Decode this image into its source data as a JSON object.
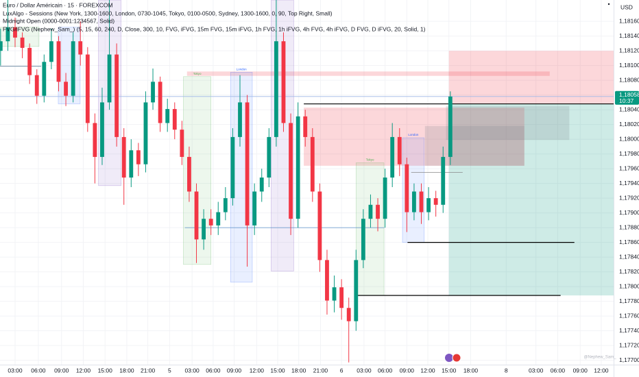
{
  "chart_data": {
    "type": "candlestick",
    "title": "Euro / Dollar Américain · 15 · FOREXCOM",
    "indicators": [
      "LuxAlgo - Sessions (New York, 1300-1600, London, 0730-1045, Tokyo, 0100-0500, Sydney, 1300-1600, 0, 90, Top Right, Small)",
      "Midnight Open (0000-0001:1234567, Solid)",
      "FVG/iFVG (Nephew_Sam_) (5, 15, 60, 240, D, Close, 300, 10, FVG, iFVG, 15m FVG, 15m iFVG, 1h FVG, 1h iFVG, 4h FVG, 4h iFVG, D FVG, D iFVG, 20, Solid, 1)"
    ],
    "currency": "USD",
    "watermark": "@Nephew_Sam_",
    "last_price": {
      "value": 1.18058,
      "label": "1,18058"
    },
    "countdown": "10:37",
    "up_color": "#089981",
    "down_color": "#f23645",
    "grid": true,
    "xlim": [
      0.92,
      85.51
    ],
    "ylim": [
      1.17694,
      1.18189
    ],
    "xticks": [
      {
        "value": 3.0,
        "label": "03:00"
      },
      {
        "value": 6.2,
        "label": "06:00"
      },
      {
        "value": 9.4,
        "label": "09:00"
      },
      {
        "value": 12.4,
        "label": "12:00"
      },
      {
        "value": 15.4,
        "label": "15:00"
      },
      {
        "value": 18.4,
        "label": "18:00"
      },
      {
        "value": 21.3,
        "label": "21:00"
      },
      {
        "value": 24.3,
        "label": "5"
      },
      {
        "value": 27.4,
        "label": "03:00"
      },
      {
        "value": 30.3,
        "label": "06:00"
      },
      {
        "value": 33.2,
        "label": "09:00"
      },
      {
        "value": 36.3,
        "label": "12:00"
      },
      {
        "value": 39.2,
        "label": "15:00"
      },
      {
        "value": 42.1,
        "label": "18:00"
      },
      {
        "value": 45.1,
        "label": "21:00"
      },
      {
        "value": 48.0,
        "label": "6"
      },
      {
        "value": 51.1,
        "label": "03:00"
      },
      {
        "value": 54.0,
        "label": "06:00"
      },
      {
        "value": 57.0,
        "label": "09:00"
      },
      {
        "value": 59.9,
        "label": "12:00"
      },
      {
        "value": 62.8,
        "label": "15:00"
      },
      {
        "value": 65.8,
        "label": "18:00"
      },
      {
        "value": 70.7,
        "label": "8"
      },
      {
        "value": 74.8,
        "label": "03:00"
      },
      {
        "value": 77.8,
        "label": "06:00"
      },
      {
        "value": 80.9,
        "label": "09:00"
      },
      {
        "value": 83.8,
        "label": "12:00"
      }
    ],
    "yticks": [
      {
        "value": 1.177,
        "label": "1,17700"
      },
      {
        "value": 1.1772,
        "label": "1,17720"
      },
      {
        "value": 1.1774,
        "label": "1,17740"
      },
      {
        "value": 1.1776,
        "label": "1,17760"
      },
      {
        "value": 1.1778,
        "label": "1,17780"
      },
      {
        "value": 1.178,
        "label": "1,17800"
      },
      {
        "value": 1.1782,
        "label": "1,17820"
      },
      {
        "value": 1.1784,
        "label": "1,17840"
      },
      {
        "value": 1.1786,
        "label": "1,17860"
      },
      {
        "value": 1.1788,
        "label": "1,17880"
      },
      {
        "value": 1.179,
        "label": "1,17900"
      },
      {
        "value": 1.1792,
        "label": "1,17920"
      },
      {
        "value": 1.1794,
        "label": "1,17940"
      },
      {
        "value": 1.1796,
        "label": "1,17960"
      },
      {
        "value": 1.1798,
        "label": "1,17980"
      },
      {
        "value": 1.18,
        "label": "1,18000"
      },
      {
        "value": 1.1802,
        "label": "1,18020"
      },
      {
        "value": 1.1804,
        "label": "1,18040"
      },
      {
        "value": 1.1806,
        "label": "1,18060"
      },
      {
        "value": 1.1808,
        "label": "1,18080"
      },
      {
        "value": 1.181,
        "label": "1,18100"
      },
      {
        "value": 1.1812,
        "label": "1,18120"
      },
      {
        "value": 1.1814,
        "label": "1,18140"
      },
      {
        "value": 1.1816,
        "label": "1,18160"
      }
    ],
    "zones": [
      {
        "x": [
          62.8,
          85.51
        ],
        "y": [
          1.17788,
          1.18048
        ],
        "color": "#089981"
      },
      {
        "x": [
          62.8,
          85.51
        ],
        "y": [
          1.18048,
          1.1812
        ],
        "color": "#f23645"
      },
      {
        "x": [
          42.8,
          73.2
        ],
        "y": [
          1.17964,
          1.18043
        ],
        "color": "#f23645"
      },
      {
        "x": [
          26.7,
          76.7
        ],
        "y": [
          1.18086,
          1.18092
        ],
        "color": "#f23645"
      },
      {
        "x": [
          59.5,
          73.2
        ],
        "y": [
          1.17964,
          1.18018
        ],
        "color": "#787b86"
      },
      {
        "x": [
          62.4,
          79.4
        ],
        "y": [
          1.17999,
          1.18045
        ],
        "color": "#787b86"
      }
    ],
    "sessions": [
      {
        "x": [
          0.97,
          6.3
        ],
        "y": [
          1.18126,
          1.18152
        ],
        "color": "#4caf50"
      },
      {
        "x": [
          8.95,
          11.97
        ],
        "y": [
          1.18048,
          1.18152
        ],
        "color": "#2962ff"
      },
      {
        "x": [
          14.5,
          17.6
        ],
        "y": [
          1.17937,
          1.18189
        ],
        "color": "#673ab7"
      },
      {
        "label": "Tokyo",
        "x": [
          26.2,
          30.0
        ],
        "y": [
          1.1783,
          1.18085
        ],
        "color": "#4caf50"
      },
      {
        "label": "London",
        "x": [
          32.7,
          35.7
        ],
        "y": [
          1.17806,
          1.18091
        ],
        "color": "#2962ff"
      },
      {
        "x": [
          38.3,
          41.4
        ],
        "y": [
          1.17821,
          1.18189
        ],
        "color": "#673ab7"
      },
      {
        "label": "Tokyo",
        "x": [
          50.0,
          53.85
        ],
        "y": [
          1.17788,
          1.17968
        ],
        "color": "#4caf50"
      },
      {
        "label": "London",
        "x": [
          56.4,
          59.4
        ],
        "y": [
          1.1786,
          1.18002
        ],
        "color": "#2962ff"
      }
    ],
    "lines": [
      {
        "x": [
          0.92,
          6.6
        ],
        "y": 1.18099,
        "color": "#4a6e8a"
      },
      {
        "x": [
          26.4,
          53.9
        ],
        "y": 1.1788,
        "color": "#5b8fc7"
      },
      {
        "x": [
          57.6,
          64.7
        ],
        "y": 1.17955,
        "color": "#888888"
      },
      {
        "x": [
          0.92,
          85.51
        ],
        "y": 1.18058,
        "color": "#9fb8e8"
      },
      {
        "x": [
          42.8,
          85.51
        ],
        "y": 1.18048,
        "color": "#000000"
      },
      {
        "x": [
          57.1,
          80.1
        ],
        "y": 1.1786,
        "color": "#000000"
      },
      {
        "x": [
          50.2,
          78.2
        ],
        "y": 1.17788,
        "color": "#000000"
      }
    ],
    "x": [
      1,
      2,
      3,
      4,
      5,
      6,
      7,
      8,
      9,
      10,
      11,
      12,
      13,
      14,
      15,
      16,
      17,
      18,
      19,
      20,
      21,
      22,
      23,
      24,
      25,
      26,
      27,
      28,
      29,
      30,
      31,
      32,
      33,
      34,
      35,
      36,
      37,
      38,
      39,
      40,
      41,
      42,
      43,
      44,
      45,
      46,
      47,
      48,
      49,
      50,
      51,
      52,
      53,
      54,
      55,
      56,
      57,
      58,
      59,
      60,
      61,
      62,
      63
    ],
    "ohlc": [
      [
        1.1812,
        1.1815,
        1.181,
        1.18133
      ],
      [
        1.18133,
        1.18189,
        1.1812,
        1.18152
      ],
      [
        1.18152,
        1.18165,
        1.18125,
        1.18138
      ],
      [
        1.18138,
        1.18145,
        1.1811,
        1.18124
      ],
      [
        1.18124,
        1.1813,
        1.18075,
        1.18087
      ],
      [
        1.18087,
        1.18095,
        1.18048,
        1.18059
      ],
      [
        1.18059,
        1.18115,
        1.1805,
        1.18105
      ],
      [
        1.18105,
        1.1815,
        1.18095,
        1.18133
      ],
      [
        1.18133,
        1.1814,
        1.18065,
        1.18078
      ],
      [
        1.18078,
        1.1809,
        1.18045,
        1.18059
      ],
      [
        1.18059,
        1.18145,
        1.1805,
        1.18133
      ],
      [
        1.18133,
        1.1816,
        1.181,
        1.18115
      ],
      [
        1.18115,
        1.18125,
        1.1801,
        1.18022
      ],
      [
        1.18022,
        1.18035,
        1.1794,
        1.17976
      ],
      [
        1.17976,
        1.1807,
        1.17965,
        1.1805
      ],
      [
        1.1805,
        1.18189,
        1.1804,
        1.18115
      ],
      [
        1.18115,
        1.1813,
        1.1799,
        1.18003
      ],
      [
        1.18003,
        1.18015,
        1.17911,
        1.17948
      ],
      [
        1.17948,
        1.18,
        1.17935,
        1.17985
      ],
      [
        1.17985,
        1.17995,
        1.1795,
        1.17966
      ],
      [
        1.17966,
        1.18065,
        1.17955,
        1.1805
      ],
      [
        1.1805,
        1.18096,
        1.1804,
        1.18078
      ],
      [
        1.18078,
        1.18085,
        1.1801,
        1.18022
      ],
      [
        1.18022,
        1.18055,
        1.1801,
        1.18041
      ],
      [
        1.18041,
        1.1805,
        1.18,
        1.18013
      ],
      [
        1.18013,
        1.18025,
        1.17965,
        1.17976
      ],
      [
        1.17976,
        1.1799,
        1.17915,
        1.17929
      ],
      [
        1.17929,
        1.1794,
        1.17832,
        1.17864
      ],
      [
        1.17864,
        1.17905,
        1.1785,
        1.17892
      ],
      [
        1.17892,
        1.17905,
        1.1787,
        1.17883
      ],
      [
        1.17883,
        1.17915,
        1.1787,
        1.17901
      ],
      [
        1.17901,
        1.17935,
        1.1789,
        1.1792
      ],
      [
        1.1792,
        1.18015,
        1.1791,
        1.18003
      ],
      [
        1.18003,
        1.18087,
        1.1799,
        1.1805
      ],
      [
        1.1805,
        1.1806,
        1.17827,
        1.17883
      ],
      [
        1.17883,
        1.1794,
        1.1787,
        1.17929
      ],
      [
        1.17929,
        1.1796,
        1.17915,
        1.17948
      ],
      [
        1.17948,
        1.18015,
        1.17935,
        1.18003
      ],
      [
        1.18003,
        1.18189,
        1.1799,
        1.18133
      ],
      [
        1.18133,
        1.18145,
        1.1801,
        1.18022
      ],
      [
        1.18022,
        1.18035,
        1.1787,
        1.17892
      ],
      [
        1.17892,
        1.1805,
        1.1788,
        1.18031
      ],
      [
        1.18031,
        1.1804,
        1.1799,
        1.18003
      ],
      [
        1.18003,
        1.18015,
        1.17915,
        1.17929
      ],
      [
        1.17929,
        1.1794,
        1.1782,
        1.17836
      ],
      [
        1.17836,
        1.1785,
        1.17762,
        1.17781
      ],
      [
        1.17781,
        1.17815,
        1.17765,
        1.17799
      ],
      [
        1.17799,
        1.1781,
        1.17755,
        1.17771
      ],
      [
        1.17771,
        1.17785,
        1.17697,
        1.17753
      ],
      [
        1.17753,
        1.1785,
        1.1774,
        1.17836
      ],
      [
        1.17836,
        1.17905,
        1.17825,
        1.17892
      ],
      [
        1.17892,
        1.17925,
        1.1788,
        1.17911
      ],
      [
        1.17911,
        1.1792,
        1.17875,
        1.17892
      ],
      [
        1.17892,
        1.1796,
        1.1788,
        1.17948
      ],
      [
        1.17948,
        1.18022,
        1.17935,
        1.18003
      ],
      [
        1.18003,
        1.18015,
        1.1795,
        1.17966
      ],
      [
        1.17966,
        1.17975,
        1.17874,
        1.17901
      ],
      [
        1.17901,
        1.1794,
        1.1789,
        1.17929
      ],
      [
        1.17929,
        1.1794,
        1.17885,
        1.17901
      ],
      [
        1.17901,
        1.17935,
        1.1789,
        1.1792
      ],
      [
        1.1792,
        1.1793,
        1.17895,
        1.17911
      ],
      [
        1.17911,
        1.1799,
        1.179,
        1.17976
      ],
      [
        1.17976,
        1.18065,
        1.17965,
        1.18058
      ]
    ]
  }
}
